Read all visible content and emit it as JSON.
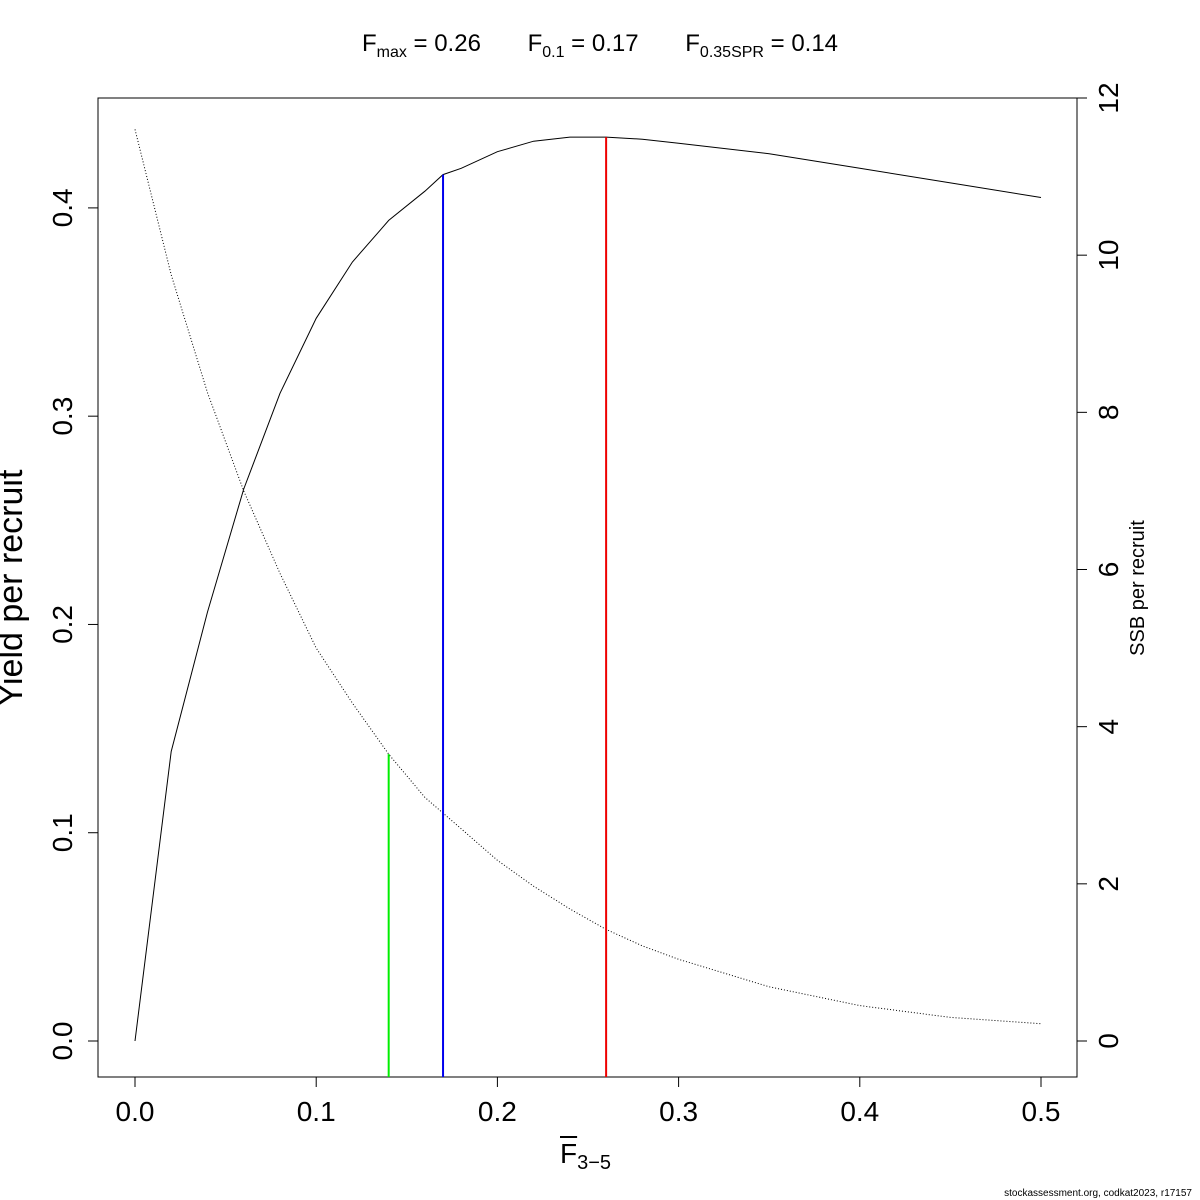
{
  "chart_data": {
    "type": "line",
    "title_terms": [
      {
        "symbol": "F",
        "subscript": "max",
        "rest": " = 0.26"
      },
      {
        "symbol": "F",
        "subscript": "0.1",
        "rest": " = 0.17"
      },
      {
        "symbol": "F",
        "subscript": "0.35SPR",
        "rest": " = 0.14"
      }
    ],
    "xlabel": {
      "symbol": "F",
      "subscript": "3−5"
    },
    "ylabel_left": "Yield per recruit",
    "ylabel_right": "SSB per recruit",
    "xlim": [
      0,
      0.5
    ],
    "ylim_left": [
      0,
      0.435
    ],
    "ylim_right": [
      0,
      12
    ],
    "x_ticks": [
      "0.0",
      "0.1",
      "0.2",
      "0.3",
      "0.4",
      "0.5"
    ],
    "y_left_ticks": [
      "0.0",
      "0.1",
      "0.2",
      "0.3",
      "0.4"
    ],
    "y_right_ticks": [
      "0",
      "2",
      "4",
      "6",
      "8",
      "10",
      "12"
    ],
    "series": [
      {
        "axis": "left",
        "style": "solid",
        "color": "#000000",
        "x": [
          0,
          0.02,
          0.04,
          0.06,
          0.08,
          0.1,
          0.12,
          0.14,
          0.16,
          0.17,
          0.18,
          0.2,
          0.22,
          0.24,
          0.26,
          0.28,
          0.3,
          0.35,
          0.4,
          0.45,
          0.5
        ],
        "y": [
          0,
          0.139,
          0.206,
          0.265,
          0.311,
          0.347,
          0.374,
          0.394,
          0.408,
          0.416,
          0.419,
          0.427,
          0.432,
          0.434,
          0.434,
          0.433,
          0.431,
          0.426,
          0.419,
          0.412,
          0.405
        ]
      },
      {
        "axis": "right",
        "style": "dotted",
        "color": "#000000",
        "x": [
          0,
          0.02,
          0.04,
          0.06,
          0.08,
          0.1,
          0.12,
          0.14,
          0.16,
          0.18,
          0.2,
          0.22,
          0.24,
          0.26,
          0.28,
          0.3,
          0.35,
          0.4,
          0.45,
          0.5
        ],
        "y": [
          11.6,
          9.75,
          8.25,
          7.0,
          5.95,
          5.0,
          4.3,
          3.65,
          3.1,
          2.7,
          2.3,
          1.97,
          1.68,
          1.42,
          1.21,
          1.04,
          0.69,
          0.45,
          0.3,
          0.22
        ]
      }
    ],
    "reference_lines": [
      {
        "x": 0.14,
        "axis": "right",
        "top": 3.65,
        "color": "#00ee00"
      },
      {
        "x": 0.17,
        "axis": "left",
        "top": 0.416,
        "color": "#0000ee"
      },
      {
        "x": 0.26,
        "axis": "left",
        "top": 0.434,
        "color": "#ee0000"
      }
    ]
  },
  "footer": "stockassessment.org, codkat2023, r17157"
}
